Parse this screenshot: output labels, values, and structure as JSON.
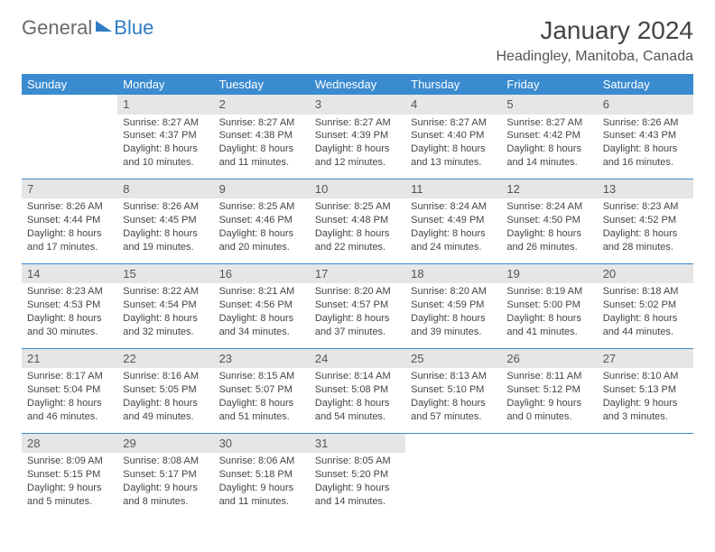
{
  "logo": {
    "general": "General",
    "blue": "Blue"
  },
  "title": "January 2024",
  "location": "Headingley, Manitoba, Canada",
  "colors": {
    "header_bg": "#3a8bcf",
    "header_text": "#ffffff",
    "daynum_bg": "#e6e6e6",
    "rule": "#3a8bcf",
    "body_text": "#444444",
    "logo_blue": "#2e7cc4"
  },
  "weekdays": [
    "Sunday",
    "Monday",
    "Tuesday",
    "Wednesday",
    "Thursday",
    "Friday",
    "Saturday"
  ],
  "weeks": [
    [
      null,
      {
        "n": "1",
        "sr": "Sunrise: 8:27 AM",
        "ss": "Sunset: 4:37 PM",
        "dl": "Daylight: 8 hours and 10 minutes."
      },
      {
        "n": "2",
        "sr": "Sunrise: 8:27 AM",
        "ss": "Sunset: 4:38 PM",
        "dl": "Daylight: 8 hours and 11 minutes."
      },
      {
        "n": "3",
        "sr": "Sunrise: 8:27 AM",
        "ss": "Sunset: 4:39 PM",
        "dl": "Daylight: 8 hours and 12 minutes."
      },
      {
        "n": "4",
        "sr": "Sunrise: 8:27 AM",
        "ss": "Sunset: 4:40 PM",
        "dl": "Daylight: 8 hours and 13 minutes."
      },
      {
        "n": "5",
        "sr": "Sunrise: 8:27 AM",
        "ss": "Sunset: 4:42 PM",
        "dl": "Daylight: 8 hours and 14 minutes."
      },
      {
        "n": "6",
        "sr": "Sunrise: 8:26 AM",
        "ss": "Sunset: 4:43 PM",
        "dl": "Daylight: 8 hours and 16 minutes."
      }
    ],
    [
      {
        "n": "7",
        "sr": "Sunrise: 8:26 AM",
        "ss": "Sunset: 4:44 PM",
        "dl": "Daylight: 8 hours and 17 minutes."
      },
      {
        "n": "8",
        "sr": "Sunrise: 8:26 AM",
        "ss": "Sunset: 4:45 PM",
        "dl": "Daylight: 8 hours and 19 minutes."
      },
      {
        "n": "9",
        "sr": "Sunrise: 8:25 AM",
        "ss": "Sunset: 4:46 PM",
        "dl": "Daylight: 8 hours and 20 minutes."
      },
      {
        "n": "10",
        "sr": "Sunrise: 8:25 AM",
        "ss": "Sunset: 4:48 PM",
        "dl": "Daylight: 8 hours and 22 minutes."
      },
      {
        "n": "11",
        "sr": "Sunrise: 8:24 AM",
        "ss": "Sunset: 4:49 PM",
        "dl": "Daylight: 8 hours and 24 minutes."
      },
      {
        "n": "12",
        "sr": "Sunrise: 8:24 AM",
        "ss": "Sunset: 4:50 PM",
        "dl": "Daylight: 8 hours and 26 minutes."
      },
      {
        "n": "13",
        "sr": "Sunrise: 8:23 AM",
        "ss": "Sunset: 4:52 PM",
        "dl": "Daylight: 8 hours and 28 minutes."
      }
    ],
    [
      {
        "n": "14",
        "sr": "Sunrise: 8:23 AM",
        "ss": "Sunset: 4:53 PM",
        "dl": "Daylight: 8 hours and 30 minutes."
      },
      {
        "n": "15",
        "sr": "Sunrise: 8:22 AM",
        "ss": "Sunset: 4:54 PM",
        "dl": "Daylight: 8 hours and 32 minutes."
      },
      {
        "n": "16",
        "sr": "Sunrise: 8:21 AM",
        "ss": "Sunset: 4:56 PM",
        "dl": "Daylight: 8 hours and 34 minutes."
      },
      {
        "n": "17",
        "sr": "Sunrise: 8:20 AM",
        "ss": "Sunset: 4:57 PM",
        "dl": "Daylight: 8 hours and 37 minutes."
      },
      {
        "n": "18",
        "sr": "Sunrise: 8:20 AM",
        "ss": "Sunset: 4:59 PM",
        "dl": "Daylight: 8 hours and 39 minutes."
      },
      {
        "n": "19",
        "sr": "Sunrise: 8:19 AM",
        "ss": "Sunset: 5:00 PM",
        "dl": "Daylight: 8 hours and 41 minutes."
      },
      {
        "n": "20",
        "sr": "Sunrise: 8:18 AM",
        "ss": "Sunset: 5:02 PM",
        "dl": "Daylight: 8 hours and 44 minutes."
      }
    ],
    [
      {
        "n": "21",
        "sr": "Sunrise: 8:17 AM",
        "ss": "Sunset: 5:04 PM",
        "dl": "Daylight: 8 hours and 46 minutes."
      },
      {
        "n": "22",
        "sr": "Sunrise: 8:16 AM",
        "ss": "Sunset: 5:05 PM",
        "dl": "Daylight: 8 hours and 49 minutes."
      },
      {
        "n": "23",
        "sr": "Sunrise: 8:15 AM",
        "ss": "Sunset: 5:07 PM",
        "dl": "Daylight: 8 hours and 51 minutes."
      },
      {
        "n": "24",
        "sr": "Sunrise: 8:14 AM",
        "ss": "Sunset: 5:08 PM",
        "dl": "Daylight: 8 hours and 54 minutes."
      },
      {
        "n": "25",
        "sr": "Sunrise: 8:13 AM",
        "ss": "Sunset: 5:10 PM",
        "dl": "Daylight: 8 hours and 57 minutes."
      },
      {
        "n": "26",
        "sr": "Sunrise: 8:11 AM",
        "ss": "Sunset: 5:12 PM",
        "dl": "Daylight: 9 hours and 0 minutes."
      },
      {
        "n": "27",
        "sr": "Sunrise: 8:10 AM",
        "ss": "Sunset: 5:13 PM",
        "dl": "Daylight: 9 hours and 3 minutes."
      }
    ],
    [
      {
        "n": "28",
        "sr": "Sunrise: 8:09 AM",
        "ss": "Sunset: 5:15 PM",
        "dl": "Daylight: 9 hours and 5 minutes."
      },
      {
        "n": "29",
        "sr": "Sunrise: 8:08 AM",
        "ss": "Sunset: 5:17 PM",
        "dl": "Daylight: 9 hours and 8 minutes."
      },
      {
        "n": "30",
        "sr": "Sunrise: 8:06 AM",
        "ss": "Sunset: 5:18 PM",
        "dl": "Daylight: 9 hours and 11 minutes."
      },
      {
        "n": "31",
        "sr": "Sunrise: 8:05 AM",
        "ss": "Sunset: 5:20 PM",
        "dl": "Daylight: 9 hours and 14 minutes."
      },
      null,
      null,
      null
    ]
  ]
}
